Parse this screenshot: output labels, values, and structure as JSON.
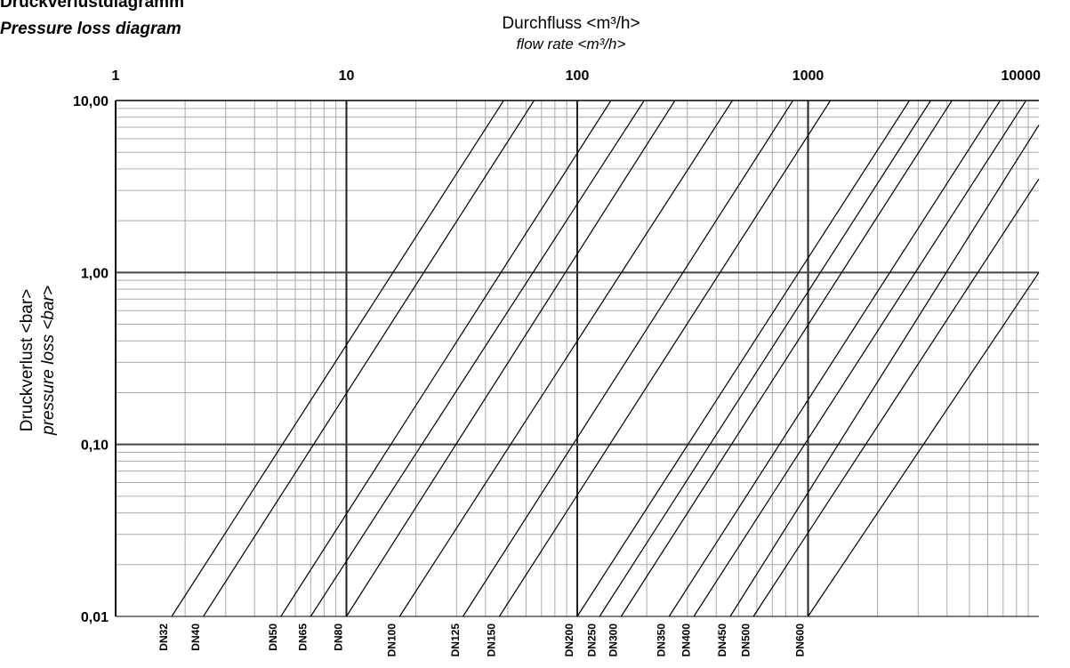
{
  "header": {
    "title_de": "Druckverlustdiagramm",
    "title_en": "Pressure loss diagram"
  },
  "chart_data": {
    "type": "line",
    "title": "Druckverlustdiagramm",
    "subtitle": "Pressure loss diagram",
    "xlabel": "Durchfluss <m³/h>",
    "xlabel_en": "flow rate <m³/h>",
    "ylabel": "Druckverlust <bar>",
    "ylabel_en": "pressure loss <bar>",
    "x_scale": "log",
    "y_scale": "log",
    "xlim": [
      1,
      10000
    ],
    "ylim": [
      0.01,
      10
    ],
    "x_ticks": [
      "1",
      "10",
      "100",
      "1000",
      "10000"
    ],
    "y_ticks": [
      "0,01",
      "0,10",
      "1,00",
      "10,00"
    ],
    "x_axis_position": "top",
    "grid": true,
    "series_label_position": "bottom, rotated",
    "series": [
      {
        "name": "DN32",
        "x": [
          1.75,
          48
        ],
        "y": [
          0.01,
          10
        ]
      },
      {
        "name": "DN40",
        "x": [
          2.4,
          65
        ],
        "y": [
          0.01,
          10
        ]
      },
      {
        "name": "DN50",
        "x": [
          5.2,
          140
        ],
        "y": [
          0.01,
          10
        ]
      },
      {
        "name": "DN65",
        "x": [
          7.0,
          195
        ],
        "y": [
          0.01,
          10
        ]
      },
      {
        "name": "DN80",
        "x": [
          10,
          265
        ],
        "y": [
          0.01,
          10
        ]
      },
      {
        "name": "DN100",
        "x": [
          17,
          470
        ],
        "y": [
          0.01,
          10
        ]
      },
      {
        "name": "DN125",
        "x": [
          32,
          860
        ],
        "y": [
          0.01,
          10
        ]
      },
      {
        "name": "DN150",
        "x": [
          46,
          1250
        ],
        "y": [
          0.01,
          10
        ]
      },
      {
        "name": "DN200",
        "x": [
          100,
          2750
        ],
        "y": [
          0.01,
          10
        ]
      },
      {
        "name": "DN250",
        "x": [
          125,
          3400
        ],
        "y": [
          0.01,
          10
        ]
      },
      {
        "name": "DN300",
        "x": [
          155,
          4200
        ],
        "y": [
          0.01,
          10
        ]
      },
      {
        "name": "DN350",
        "x": [
          250,
          6800
        ],
        "y": [
          0.01,
          10
        ]
      },
      {
        "name": "DN400",
        "x": [
          320,
          8800
        ],
        "y": [
          0.01,
          10
        ]
      },
      {
        "name": "DN450",
        "x": [
          460,
          10000
        ],
        "y": [
          0.01,
          7.2
        ]
      },
      {
        "name": "DN500",
        "x": [
          580,
          10000
        ],
        "y": [
          0.01,
          3.5
        ]
      },
      {
        "name": "DN600",
        "x": [
          1000,
          10000
        ],
        "y": [
          0.01,
          1.0
        ]
      }
    ]
  }
}
